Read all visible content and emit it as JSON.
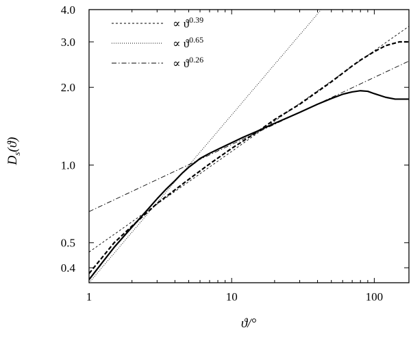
{
  "chart_data": {
    "type": "line",
    "title": "",
    "xlabel": "ϑ/°",
    "ylabel": "D_s(ϑ)",
    "xscale": "log",
    "yscale": "log",
    "xlim": [
      1,
      175
    ],
    "ylim": [
      0.35,
      4.0
    ],
    "grid": false,
    "legend_position": "top-left",
    "x_ticks": [
      {
        "value": 1,
        "label": "1"
      },
      {
        "value": 10,
        "label": "10"
      },
      {
        "value": 100,
        "label": "100"
      }
    ],
    "y_ticks": [
      {
        "value": 0.4,
        "label": "0.4"
      },
      {
        "value": 0.5,
        "label": "0.5"
      },
      {
        "value": 1.0,
        "label": "1.0"
      },
      {
        "value": 2.0,
        "label": "2.0"
      },
      {
        "value": 3.0,
        "label": "3.0"
      },
      {
        "value": 4.0,
        "label": "4.0"
      }
    ],
    "series": [
      {
        "name": "",
        "style": "solid-thick",
        "x": [
          1,
          1.2,
          1.5,
          2,
          2.5,
          3,
          3.5,
          4,
          4.5,
          5,
          5.5,
          6,
          7,
          8,
          10,
          12,
          15,
          20,
          25,
          30,
          40,
          50,
          60,
          70,
          80,
          90,
          100,
          120,
          140,
          175
        ],
        "y": [
          0.36,
          0.41,
          0.48,
          0.575,
          0.66,
          0.74,
          0.81,
          0.87,
          0.93,
          0.98,
          1.02,
          1.06,
          1.11,
          1.15,
          1.22,
          1.28,
          1.35,
          1.45,
          1.53,
          1.6,
          1.72,
          1.81,
          1.88,
          1.92,
          1.94,
          1.93,
          1.89,
          1.83,
          1.8,
          1.8
        ]
      },
      {
        "name": "",
        "style": "dashed-thick",
        "x": [
          1,
          1.5,
          2,
          3,
          5,
          7,
          10,
          15,
          20,
          30,
          50,
          70,
          80,
          100,
          120,
          150,
          175
        ],
        "y": [
          0.38,
          0.5,
          0.58,
          0.71,
          0.88,
          1.01,
          1.16,
          1.34,
          1.5,
          1.72,
          2.1,
          2.42,
          2.55,
          2.75,
          2.9,
          3.0,
          3.0
        ]
      },
      {
        "name": "∝ ϑ^0.39",
        "style": "dashed-thin",
        "exponent": 0.39,
        "prefactor": 0.46,
        "x": [
          1,
          175
        ],
        "label_base": "∝ ϑ",
        "label_exp": "0.39"
      },
      {
        "name": "∝ ϑ^0.65",
        "style": "dotted-thin",
        "exponent": 0.65,
        "prefactor": 0.35,
        "x": [
          1,
          175
        ],
        "label_base": "∝ ϑ",
        "label_exp": "0.65"
      },
      {
        "name": "∝ ϑ^0.26",
        "style": "dashdot-thin",
        "exponent": 0.26,
        "prefactor": 0.66,
        "x": [
          1,
          175
        ],
        "label_base": "∝ ϑ",
        "label_exp": "0.26"
      }
    ]
  }
}
